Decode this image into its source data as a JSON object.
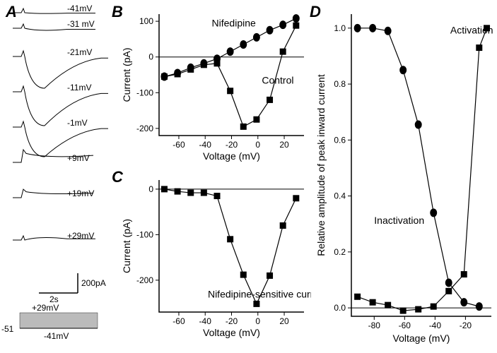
{
  "panels": {
    "A": "A",
    "B": "B",
    "C": "C",
    "D": "D"
  },
  "colors": {
    "bg": "#ffffff",
    "ink": "#000000"
  },
  "panelA": {
    "labels": [
      "-41mV",
      "-31 mV",
      "-21mV",
      "-11mV",
      "-1mV",
      "+9mV",
      "+19mV",
      "+29mV"
    ],
    "scaleX": "2s",
    "scaleY": "200pA",
    "protocolTop": "+29mV",
    "protocolLeft": "-51",
    "protocolBottom": "-41mV"
  },
  "panelB": {
    "title_nif": "Nifedipine",
    "title_ctrl": "Control",
    "xlabel": "Voltage (mV)",
    "ylabel": "Current (pA)",
    "xlim": [
      -75,
      35
    ],
    "ylim": [
      -220,
      120
    ],
    "xticks": [
      -60,
      -40,
      -20,
      0,
      20
    ],
    "yticks": [
      -200,
      -100,
      0,
      100
    ],
    "nifedipine": {
      "type": "line",
      "marker": "circle",
      "x": [
        -71,
        -61,
        -51,
        -41,
        -31,
        -21,
        -11,
        -1,
        9,
        19,
        29
      ],
      "y": [
        -55,
        -45,
        -30,
        -18,
        -5,
        15,
        35,
        55,
        75,
        90,
        108
      ]
    },
    "control": {
      "type": "line",
      "marker": "square",
      "x": [
        -71,
        -61,
        -51,
        -41,
        -31,
        -21,
        -11,
        -1,
        9,
        19,
        29
      ],
      "y": [
        -55,
        -48,
        -35,
        -22,
        -18,
        -95,
        -195,
        -175,
        -120,
        15,
        88
      ]
    }
  },
  "panelC": {
    "title": "Nifedipine-sensitive current",
    "xlabel": "Voltage (mV)",
    "ylabel": "Current (pA)",
    "xlim": [
      -75,
      35
    ],
    "ylim": [
      -270,
      20
    ],
    "xticks": [
      -60,
      -40,
      -20,
      0,
      20
    ],
    "yticks": [
      -200,
      -100,
      0
    ],
    "series": {
      "type": "line",
      "marker": "square",
      "x": [
        -71,
        -61,
        -51,
        -41,
        -31,
        -21,
        -11,
        -1,
        9,
        19,
        29
      ],
      "y": [
        0,
        -5,
        -8,
        -8,
        -15,
        -110,
        -188,
        -252,
        -190,
        -80,
        -20
      ]
    }
  },
  "panelD": {
    "title_act": "Activation",
    "title_inact": "Inactivation",
    "xlabel": "Voltage (mV)",
    "ylabel": "Relative amplitude of peak inward current",
    "xlim": [
      -95,
      -3
    ],
    "ylim": [
      -0.03,
      1.05
    ],
    "xticks": [
      -80,
      -60,
      -40,
      -20
    ],
    "yticks": [
      0.0,
      0.2,
      0.4,
      0.6,
      0.8,
      1.0
    ],
    "activation": {
      "type": "line",
      "marker": "square",
      "x": [
        -91,
        -81,
        -71,
        -61,
        -51,
        -41,
        -31,
        -21,
        -11,
        -6
      ],
      "y": [
        0.04,
        0.02,
        0.01,
        -0.01,
        -0.005,
        0.005,
        0.06,
        0.12,
        0.93,
        1.0
      ]
    },
    "inactivation": {
      "type": "line",
      "marker": "circle",
      "x": [
        -91,
        -81,
        -71,
        -61,
        -51,
        -41,
        -31,
        -21,
        -11
      ],
      "y": [
        1.0,
        1.0,
        0.99,
        0.85,
        0.655,
        0.34,
        0.09,
        0.02,
        0.005
      ]
    }
  }
}
